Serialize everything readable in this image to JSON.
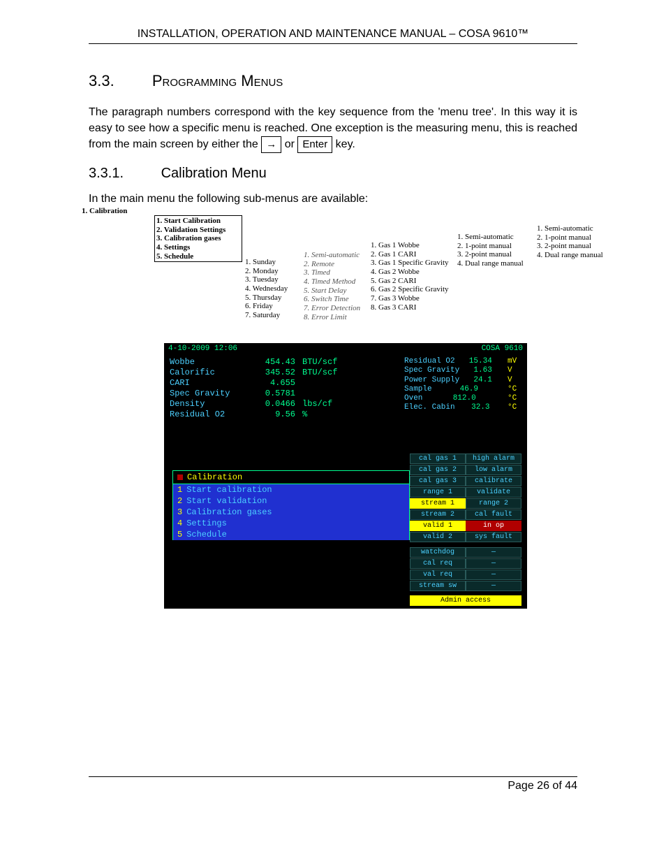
{
  "header": "INSTALLATION, OPERATION AND MAINTENANCE MANUAL – COSA 9610™",
  "section": {
    "num": "3.3.",
    "title": "Programming Menus"
  },
  "para1_a": "The paragraph numbers correspond with the key sequence from the 'menu tree'.  In this way it is easy to see how a specific menu is reached.  One exception is the measuring menu, this is reached from the main screen by either the ",
  "key_arrow": "→",
  "para1_b": " or ",
  "key_enter": "Enter",
  "para1_c": " key.",
  "sub": {
    "num": "3.3.1.",
    "title": "Calibration Menu"
  },
  "intro": "In the main menu the following sub-menus are available:",
  "tree": {
    "root": "1. Calibration",
    "a": [
      "1. Start Calibration",
      "2. Validation Settings",
      "3. Calibration gases",
      "4. Settings",
      "5. Schedule"
    ],
    "b": [
      "1. Sunday",
      "2. Monday",
      "3. Tuesday",
      "4. Wednesday",
      "5. Thursday",
      "6. Friday",
      "7. Saturday"
    ],
    "c": [
      "1. Semi-automatic",
      "2. Remote",
      "3. Timed",
      "4. Timed Method",
      "5. Start Delay",
      "6. Switch Time",
      "7. Error Detection",
      "8. Error Limit"
    ],
    "d": [
      "1. Gas 1 Wobbe",
      "2. Gas 1 CARI",
      "3. Gas 1 Specific Gravity",
      "4. Gas 2 Wobbe",
      "5. Gas 2 CARI",
      "6. Gas 2 Specific Gravity",
      "7. Gas 3 Wobbe",
      "8. Gas 3 CARI"
    ],
    "e": [
      "1. Semi-automatic",
      "2. 1-point manual",
      "3. 2-point manual",
      "4. Dual range manual"
    ],
    "f": [
      "1. Semi-automatic",
      "2. 1-point manual",
      "3. 2-point manual",
      "4. Dual range manual"
    ]
  },
  "term": {
    "datetime": "4-10-2009 12:06",
    "device": "COSA 9610",
    "meas": [
      {
        "l": "Wobbe",
        "v": "454.43",
        "u": "BTU/scf"
      },
      {
        "l": "Calorific",
        "v": "345.52",
        "u": "BTU/scf"
      },
      {
        "l": "CARI",
        "v": "4.655",
        "u": ""
      },
      {
        "l": "Spec Gravity",
        "v": "0.5781",
        "u": ""
      },
      {
        "l": "Density",
        "v": "0.0466",
        "u": "lbs/cf"
      },
      {
        "l": "Residual O2",
        "v": "9.56",
        "u": "%"
      }
    ],
    "right": [
      {
        "l": "Residual O2",
        "v": "15.34",
        "u": "mV"
      },
      {
        "l": "Spec Gravity",
        "v": "1.63",
        "u": "V"
      },
      {
        "l": "Power Supply",
        "v": "24.1",
        "u": "V"
      },
      {
        "l": "Sample",
        "v": "46.9",
        "u": "°C"
      },
      {
        "l": "Oven",
        "v": "812.0",
        "u": "°C"
      },
      {
        "l": "Elec. Cabin",
        "v": "32.3",
        "u": "°C"
      }
    ],
    "menu_title": "Calibration",
    "menu_items": [
      {
        "n": "1",
        "t": "Start calibration"
      },
      {
        "n": "2",
        "t": "Start validation"
      },
      {
        "n": "3",
        "t": "Calibration gases"
      },
      {
        "n": "4",
        "t": "Settings"
      },
      {
        "n": "5",
        "t": "Schedule"
      }
    ],
    "status": [
      [
        "cal gas 1",
        "high alarm",
        "",
        ""
      ],
      [
        "cal gas 2",
        "low alarm",
        "",
        ""
      ],
      [
        "cal gas 3",
        "calibrate",
        "",
        ""
      ],
      [
        "range 1",
        "validate",
        "",
        ""
      ],
      [
        "stream 1",
        "range 2",
        "hl",
        ""
      ],
      [
        "stream 2",
        "cal fault",
        "",
        ""
      ],
      [
        "valid 1",
        "in op",
        "hl",
        "red"
      ],
      [
        "valid 2",
        "sys fault",
        "",
        ""
      ]
    ],
    "status2": [
      [
        "watchdog",
        "—"
      ],
      [
        "cal req",
        "—"
      ],
      [
        "val req",
        "—"
      ],
      [
        "stream sw",
        "—"
      ]
    ],
    "admin": "Admin access"
  },
  "footer": "Page 26 of 44"
}
